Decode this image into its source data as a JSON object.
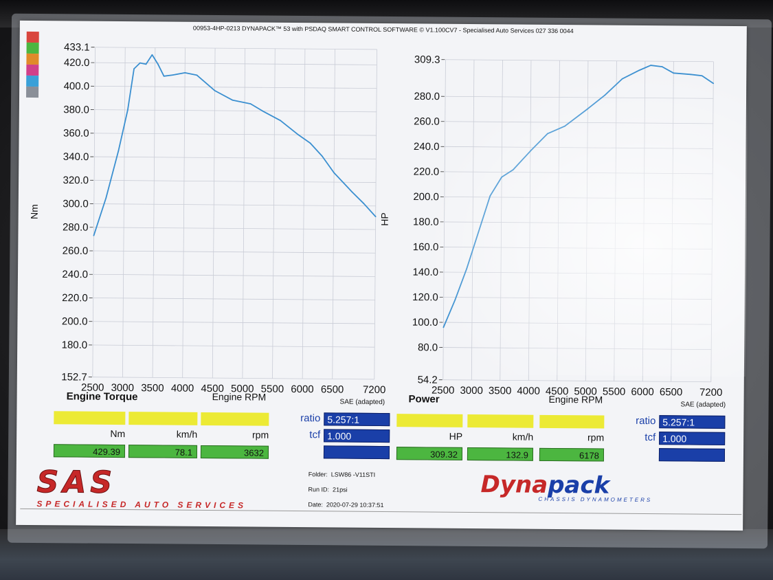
{
  "header": "00953-4HP-0213 DYNAPACK™ 53 with PSDAQ SMART CONTROL SOFTWARE © V1.100CV7 - Specialised Auto Services 027 336 0044",
  "palette_colors": [
    "#d9463e",
    "#4cb640",
    "#e08a2a",
    "#d0408a",
    "#3aa0d8",
    "#8a8f98"
  ],
  "torque_panel": {
    "title": "Engine Torque",
    "xlabel": "Engine RPM",
    "sae": "SAE (adapted)",
    "units": [
      "Nm",
      "km/h",
      "rpm"
    ],
    "values": [
      "429.39",
      "78.1",
      "3632"
    ],
    "ratio_label": "ratio",
    "ratio_value": "5.257:1",
    "tcf_label": "tcf",
    "tcf_value": "1.000"
  },
  "power_panel": {
    "title": "Power",
    "xlabel": "Engine RPM",
    "sae": "SAE (adapted)",
    "units": [
      "HP",
      "km/h",
      "rpm"
    ],
    "values": [
      "309.32",
      "132.9",
      "6178"
    ],
    "ratio_label": "ratio",
    "ratio_value": "5.257:1",
    "tcf_label": "tcf",
    "tcf_value": "1.000"
  },
  "footer": {
    "logo_left": "SAS",
    "logo_left_sub": "SPECIALISED AUTO SERVICES",
    "folder_label": "Folder:",
    "folder_value": "LSW86 -V11STI",
    "run_label": "Run ID:",
    "run_value": "21psi",
    "date_label": "Date:",
    "date_value": "2020-07-29 10:37:51",
    "logo_right_a": "Dyna",
    "logo_right_b": "pack",
    "logo_right_sub": "CHASSIS DYNAMOMETERS"
  },
  "chart_data": [
    {
      "type": "line",
      "ylabel": "Nm",
      "xlabel": "Engine RPM",
      "xlim": [
        2500,
        7200
      ],
      "ylim": [
        152.7,
        433.1
      ],
      "x_ticks": [
        2500,
        3000,
        3500,
        4000,
        4500,
        5000,
        5500,
        6000,
        6500,
        7200
      ],
      "y_ticks": [
        "152.7",
        "180.0",
        "200.0",
        "220.0",
        "240.0",
        "260.0",
        "280.0",
        "300.0",
        "320.0",
        "340.0",
        "360.0",
        "380.0",
        "400.0",
        "420.0",
        "433.1"
      ],
      "grid": true,
      "series_color": "#3a8fd0",
      "x": [
        2500,
        2700,
        2900,
        3050,
        3150,
        3250,
        3350,
        3450,
        3550,
        3650,
        3800,
        4000,
        4200,
        4500,
        4800,
        5100,
        5300,
        5600,
        5900,
        6100,
        6300,
        6500,
        6800,
        7000,
        7200
      ],
      "y": [
        273,
        305,
        345,
        380,
        415,
        420,
        419,
        427,
        419,
        409,
        410,
        412,
        410,
        397,
        389,
        386,
        380,
        372,
        360,
        353,
        342,
        328,
        312,
        302,
        291
      ]
    },
    {
      "type": "line",
      "ylabel": "HP",
      "xlabel": "Engine RPM",
      "xlim": [
        2500,
        7200
      ],
      "ylim": [
        54.2,
        309.3
      ],
      "x_ticks": [
        2500,
        3000,
        3500,
        4000,
        4500,
        5000,
        5500,
        6000,
        6500,
        7200
      ],
      "y_ticks": [
        "54.2",
        "80.0",
        "100.0",
        "120.0",
        "140.0",
        "160.0",
        "180.0",
        "200.0",
        "220.0",
        "240.0",
        "260.0",
        "280.0",
        "309.3"
      ],
      "grid": true,
      "series_color": "#3a8fd0",
      "x": [
        2500,
        2700,
        2900,
        3100,
        3300,
        3500,
        3700,
        4000,
        4300,
        4600,
        5000,
        5300,
        5600,
        5900,
        6100,
        6300,
        6500,
        6800,
        7000,
        7200
      ],
      "y": [
        96,
        118,
        143,
        172,
        201,
        216,
        222,
        237,
        251,
        257,
        271,
        282,
        295,
        302,
        306,
        305,
        300,
        299,
        298,
        292
      ]
    }
  ]
}
